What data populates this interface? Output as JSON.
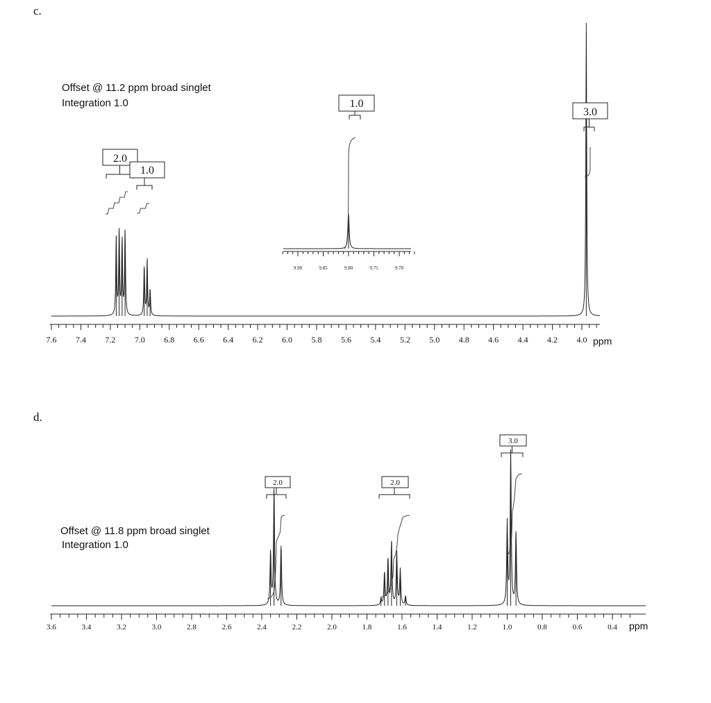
{
  "panels": [
    {
      "label": "c.",
      "note_line1": "Offset @ 11.2 ppm broad singlet",
      "note_line2": "Integration 1.0",
      "axis_unit": "ppm"
    },
    {
      "label": "d.",
      "note_line1": "Offset @ 11.8 ppm broad singlet",
      "note_line2": "Integration 1.0",
      "axis_unit": "ppm"
    }
  ],
  "chart_data": [
    {
      "type": "line",
      "panel": "c.",
      "xlabel": "ppm",
      "xlim": [
        7.6,
        3.9
      ],
      "x_reversed": true,
      "ticks": [
        7.6,
        7.4,
        7.2,
        7.0,
        6.8,
        6.6,
        6.4,
        6.2,
        6.0,
        5.8,
        5.6,
        5.4,
        5.2,
        5.0,
        4.8,
        4.6,
        4.4,
        4.2,
        4.0
      ],
      "tick_labels": [
        "7.6",
        "7.4",
        "7.2",
        "7.0",
        "6.8",
        "6.6",
        "6.4",
        "6.2",
        "6.0",
        "5.8",
        "5.6",
        "5.4",
        "5.2",
        "5.0",
        "4.8",
        "4.6",
        "4.4",
        "4.2",
        "4.0"
      ],
      "peaks": [
        {
          "ppm": 7.16,
          "height": 0.27
        },
        {
          "ppm": 7.14,
          "height": 0.29
        },
        {
          "ppm": 7.12,
          "height": 0.26
        },
        {
          "ppm": 7.1,
          "height": 0.29
        },
        {
          "ppm": 6.97,
          "height": 0.17
        },
        {
          "ppm": 6.95,
          "height": 0.19
        },
        {
          "ppm": 6.93,
          "height": 0.09
        },
        {
          "ppm": 3.97,
          "height": 1.0
        }
      ],
      "integrals": [
        {
          "value": "2.0",
          "ppm_start": 7.18,
          "ppm_end": 7.08
        },
        {
          "value": "1.0",
          "ppm_start": 6.99,
          "ppm_end": 6.91
        },
        {
          "value": "3.0",
          "ppm_start": 3.98,
          "ppm_end": 3.96
        }
      ],
      "inset": {
        "ticks": [
          9.9,
          9.85,
          9.8,
          9.75,
          9.7
        ],
        "tick_labels": [
          "9.90",
          "9.85",
          "9.80",
          "9.75",
          "9.70"
        ],
        "xlim": [
          9.93,
          9.67
        ],
        "peaks": [
          {
            "ppm": 9.8,
            "height": 1.0
          }
        ],
        "integral": {
          "value": "1.0"
        }
      }
    },
    {
      "type": "line",
      "panel": "d.",
      "xlabel": "ppm",
      "xlim": [
        3.6,
        0.3
      ],
      "x_reversed": true,
      "ticks": [
        3.6,
        3.4,
        3.2,
        3.0,
        2.8,
        2.6,
        2.4,
        2.2,
        2.0,
        1.8,
        1.6,
        1.4,
        1.2,
        1.0,
        0.8,
        0.6,
        0.4
      ],
      "tick_labels": [
        "3.6",
        "3.4",
        "3.2",
        "3.0",
        "2.8",
        "2.6",
        "2.4",
        "2.2",
        "2.0",
        "1.8",
        "1.6",
        "1.4",
        "1.2",
        "1.0",
        "0.8",
        "0.6",
        "0.4"
      ],
      "peaks": [
        {
          "ppm": 2.35,
          "height": 0.4
        },
        {
          "ppm": 2.33,
          "height": 0.88
        },
        {
          "ppm": 2.29,
          "height": 0.45
        },
        {
          "ppm": 1.72,
          "height": 0.05
        },
        {
          "ppm": 1.7,
          "height": 0.25
        },
        {
          "ppm": 1.68,
          "height": 0.35
        },
        {
          "ppm": 1.66,
          "height": 0.48
        },
        {
          "ppm": 1.63,
          "height": 0.4
        },
        {
          "ppm": 1.61,
          "height": 0.27
        },
        {
          "ppm": 1.58,
          "height": 0.07
        },
        {
          "ppm": 1.0,
          "height": 0.62
        },
        {
          "ppm": 0.98,
          "height": 1.15
        },
        {
          "ppm": 0.95,
          "height": 0.55
        }
      ],
      "integrals": [
        {
          "value": "2.0",
          "ppm_start": 2.38,
          "ppm_end": 2.27
        },
        {
          "value": "2.0",
          "ppm_start": 1.75,
          "ppm_end": 1.57
        },
        {
          "value": "3.0",
          "ppm_start": 1.05,
          "ppm_end": 0.93
        }
      ]
    }
  ]
}
